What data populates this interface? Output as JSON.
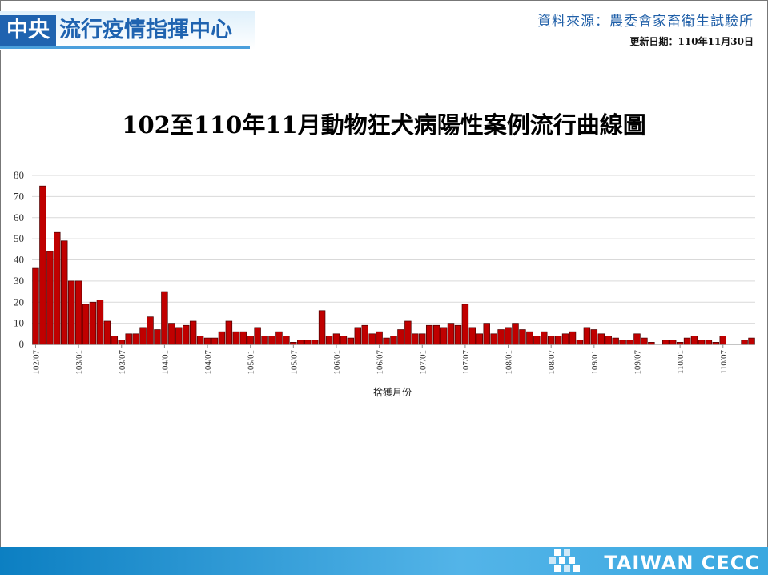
{
  "header": {
    "logo_main": "中央",
    "logo_sub": "流行疫情指揮中心",
    "source": "資料來源：農委會家畜衛生試驗所",
    "updated": "更新日期：110年11月30日"
  },
  "footer": {
    "brand": "TAIWAN CECC"
  },
  "colors": {
    "bar": "#c00000",
    "bar_stroke": "#4a0000",
    "grid": "#d9d9d9",
    "accent": "#1f63b0"
  },
  "chart_data": {
    "type": "bar",
    "title": "102至110年11月動物狂犬病陽性案例流行曲線圖",
    "xlabel": "捨獲月份",
    "ylabel": "",
    "ylim": [
      0,
      80
    ],
    "yticks": [
      0,
      10,
      20,
      30,
      40,
      50,
      60,
      70,
      80
    ],
    "grid": true,
    "legend": "none",
    "categories": [
      "102/07",
      "102/08",
      "102/09",
      "102/10",
      "102/11",
      "102/12",
      "103/01",
      "103/02",
      "103/03",
      "103/04",
      "103/05",
      "103/06",
      "103/07",
      "103/08",
      "103/09",
      "103/10",
      "103/11",
      "103/12",
      "104/01",
      "104/02",
      "104/03",
      "104/04",
      "104/05",
      "104/06",
      "104/07",
      "104/08",
      "104/09",
      "104/10",
      "104/11",
      "104/12",
      "105/01",
      "105/02",
      "105/03",
      "105/04",
      "105/05",
      "105/06",
      "105/07",
      "105/08",
      "105/09",
      "105/10",
      "105/11",
      "105/12",
      "106/01",
      "106/02",
      "106/03",
      "106/04",
      "106/05",
      "106/06",
      "106/07",
      "106/08",
      "106/09",
      "106/10",
      "106/11",
      "106/12",
      "107/01",
      "107/02",
      "107/03",
      "107/04",
      "107/05",
      "107/06",
      "107/07",
      "107/08",
      "107/09",
      "107/10",
      "107/11",
      "107/12",
      "108/01",
      "108/02",
      "108/03",
      "108/04",
      "108/05",
      "108/06",
      "108/07",
      "108/08",
      "108/09",
      "108/10",
      "108/11",
      "108/12",
      "109/01",
      "109/02",
      "109/03",
      "109/04",
      "109/05",
      "109/06",
      "109/07",
      "109/08",
      "109/09",
      "109/10",
      "109/11",
      "109/12",
      "110/01",
      "110/02",
      "110/03",
      "110/04",
      "110/05",
      "110/06",
      "110/07",
      "110/08",
      "110/09",
      "110/10",
      "110/11"
    ],
    "tick_labels": [
      "102/07",
      "103/01",
      "103/07",
      "104/01",
      "104/07",
      "105/01",
      "105/07",
      "106/01",
      "106/07",
      "107/01",
      "107/07",
      "108/01",
      "108/07",
      "109/01",
      "109/07",
      "110/01",
      "110/07"
    ],
    "values": [
      36,
      75,
      44,
      53,
      49,
      30,
      30,
      19,
      20,
      21,
      11,
      4,
      2,
      5,
      5,
      8,
      13,
      7,
      25,
      10,
      8,
      9,
      11,
      4,
      3,
      3,
      6,
      11,
      6,
      6,
      4,
      8,
      4,
      4,
      6,
      4,
      1,
      2,
      2,
      2,
      16,
      4,
      5,
      4,
      3,
      8,
      9,
      5,
      6,
      3,
      4,
      7,
      11,
      5,
      5,
      9,
      9,
      8,
      10,
      9,
      19,
      8,
      5,
      10,
      5,
      7,
      8,
      10,
      7,
      6,
      4,
      6,
      4,
      4,
      5,
      6,
      2,
      8,
      7,
      5,
      4,
      3,
      2,
      2,
      5,
      3,
      1,
      0,
      2,
      2,
      1,
      3,
      4,
      2,
      2,
      1,
      4,
      0,
      0,
      2,
      3
    ]
  }
}
